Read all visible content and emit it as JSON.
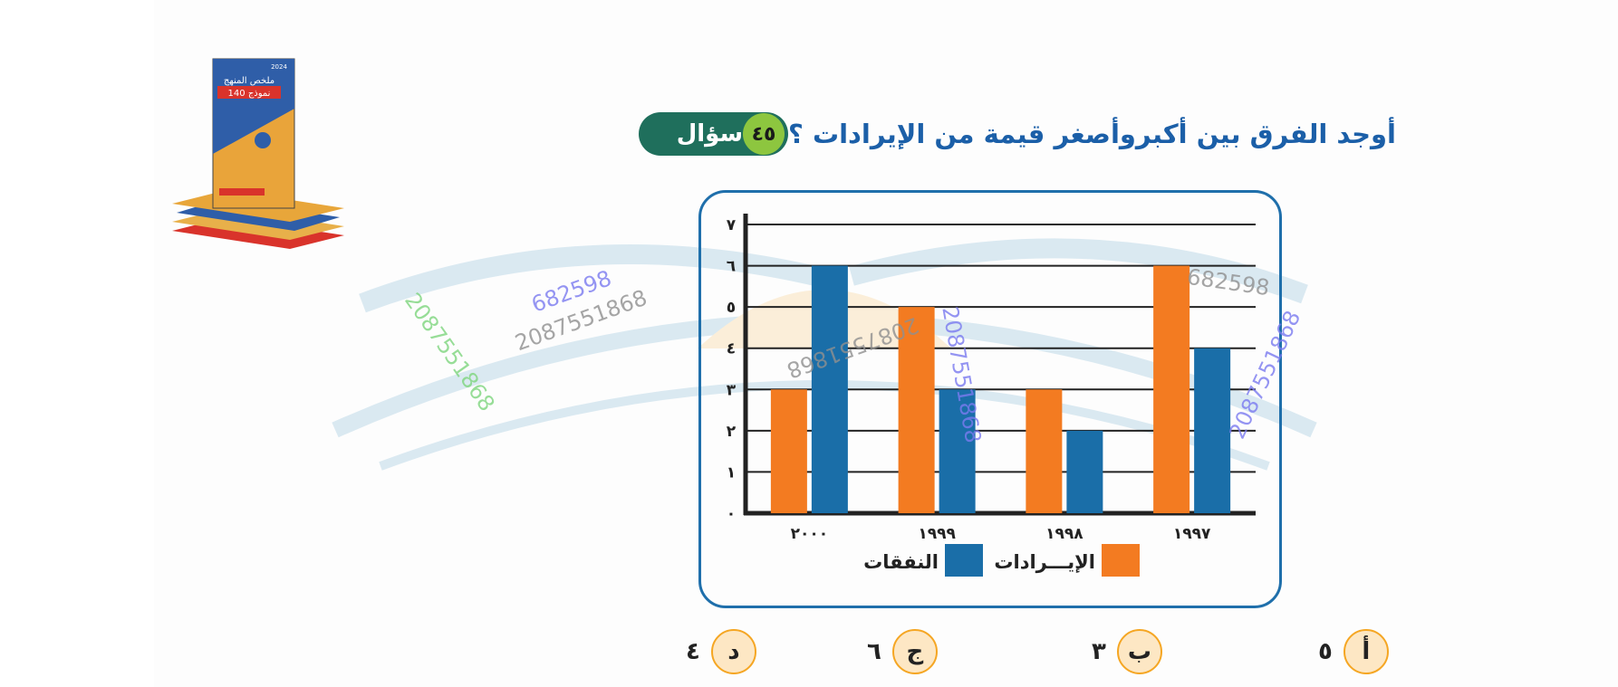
{
  "question": {
    "label": "سؤال",
    "number": "٤٥",
    "text": "أوجد الفرق بين أكبروأصغر قيمة من الإيرادات ؟"
  },
  "chart_data": {
    "type": "bar",
    "categories": [
      "١٩٩٧",
      "١٩٩٨",
      "١٩٩٩",
      "٢٠٠٠"
    ],
    "series": [
      {
        "name": "الإيـــرادات",
        "values": [
          6,
          3,
          5,
          3
        ],
        "color": "#f37b21"
      },
      {
        "name": "النفقات",
        "values": [
          4,
          2,
          3,
          6
        ],
        "color": "#1a6ea8"
      }
    ],
    "ylim": [
      0,
      7
    ],
    "yticks": [
      "٠",
      "١",
      "٢",
      "٣",
      "٤",
      "٥",
      "٦",
      "٧"
    ],
    "grid": true,
    "legend": "bottom",
    "title": "",
    "xlabel": "",
    "ylabel": ""
  },
  "options": [
    {
      "letter": "أ",
      "value": "٥"
    },
    {
      "letter": "ب",
      "value": "٣"
    },
    {
      "letter": "ج",
      "value": "٦"
    },
    {
      "letter": "د",
      "value": "٤"
    }
  ],
  "watermarks": [
    "682598",
    "2087551868",
    "2087551868",
    "2087551868",
    "682598",
    "2087551868",
    "2087551868"
  ],
  "book": {
    "title": "ملخص المنهج",
    "badge": "140 نموذج",
    "year": "2024"
  },
  "colors": {
    "question_badge": "#1f6f5c",
    "question_number": "#8dc63f",
    "question_text": "#1b5fa8",
    "frame": "#1f6fab",
    "option_circle": "#fde7c4"
  }
}
